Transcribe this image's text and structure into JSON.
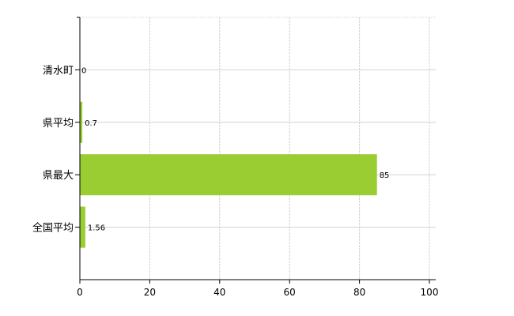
{
  "chart_data": {
    "type": "bar",
    "orientation": "horizontal",
    "categories": [
      "清水町",
      "県平均",
      "県最大",
      "全国平均"
    ],
    "values": [
      0,
      0.7,
      85,
      1.56
    ],
    "data_labels": [
      "0",
      "0.7",
      "85",
      "1.56"
    ],
    "title": "",
    "xlabel": "",
    "ylabel": "",
    "xlim": [
      0,
      100
    ],
    "x_ticks": [
      0,
      20,
      40,
      60,
      80,
      100
    ],
    "x_tick_labels": [
      "0",
      "20",
      "40",
      "60",
      "80",
      "100"
    ],
    "grid": true,
    "legend": "none",
    "colors": {
      "bar": "#9acd32",
      "grid": "#d8d0d8",
      "axis": "#000000"
    }
  }
}
